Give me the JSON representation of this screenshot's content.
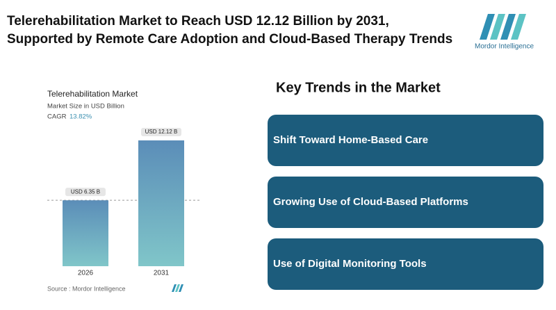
{
  "header": {
    "title_lines": [
      "Telerehabilitation Market to Reach USD 12.12 Billion by 2031,",
      "Supported by Remote Care Adoption and Cloud-Based Therapy Trends"
    ],
    "logo": "Mordor Intelligence"
  },
  "chart_data": {
    "type": "bar",
    "title": "Telerehabilitation Market",
    "subtitle": "Market Size in USD Billion",
    "cagr_label": "CAGR",
    "cagr_value": "13.82%",
    "categories": [
      "2026",
      "2031"
    ],
    "values": [
      6.35,
      12.12
    ],
    "value_labels": [
      "USD 6.35 B",
      "USD 12.12 B"
    ],
    "colors": [
      "#5b8db8",
      "#80c6c9"
    ],
    "source": "Source :  Mordor Intelligence"
  },
  "trends": {
    "title": "Key Trends in the Market",
    "color": "#1c5c7c",
    "items": [
      "Shift Toward Home-Based Care",
      "Growing Use of Cloud-Based Platforms",
      "Use of Digital Monitoring Tools"
    ]
  }
}
